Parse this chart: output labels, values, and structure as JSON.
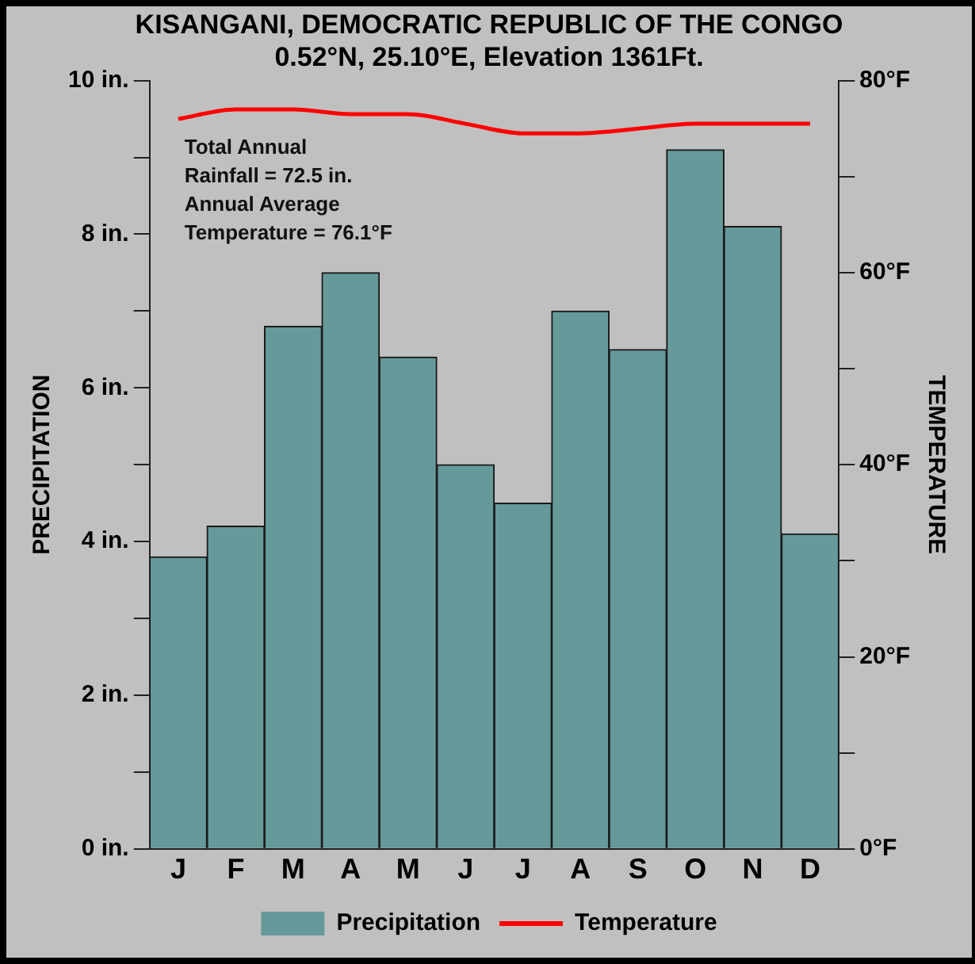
{
  "chart_data": {
    "type": "bar",
    "title": [
      "KISANGANI, DEMOCRATIC REPUBLIC OF THE CONGO",
      "0.52°N, 25.10°E, Elevation 1361Ft."
    ],
    "categories": [
      "J",
      "F",
      "M",
      "A",
      "M",
      "J",
      "J",
      "A",
      "S",
      "O",
      "N",
      "D"
    ],
    "series": [
      {
        "name": "Precipitation",
        "color": "#669999",
        "values": [
          3.8,
          4.2,
          6.8,
          7.5,
          6.4,
          5.0,
          4.5,
          7.0,
          6.5,
          9.1,
          8.1,
          4.1
        ]
      },
      {
        "name": "Temperature",
        "type": "line",
        "axis": "y2",
        "color": "#ff0000",
        "values": [
          76,
          77,
          77,
          76.5,
          76.5,
          75.5,
          74.5,
          74.5,
          75,
          75.5,
          75.5,
          75.5
        ]
      }
    ],
    "ylabel": "PRECIPITATION",
    "y2label": "TEMPERATURE",
    "ylim": [
      0,
      10
    ],
    "yticks": [
      {
        "value": 0,
        "label": "0 in."
      },
      {
        "value": 1,
        "label": null
      },
      {
        "value": 2,
        "label": "2 in."
      },
      {
        "value": 3,
        "label": null
      },
      {
        "value": 4,
        "label": "4 in."
      },
      {
        "value": 5,
        "label": null
      },
      {
        "value": 6,
        "label": "6 in."
      },
      {
        "value": 7,
        "label": null
      },
      {
        "value": 8,
        "label": "8 in."
      },
      {
        "value": 9,
        "label": null
      },
      {
        "value": 10,
        "label": "10 in."
      }
    ],
    "y2lim": [
      0,
      80
    ],
    "y2ticks": [
      {
        "value": 0,
        "label": "0°F"
      },
      {
        "value": 10,
        "label": null
      },
      {
        "value": 20,
        "label": "20°F"
      },
      {
        "value": 30,
        "label": null
      },
      {
        "value": 40,
        "label": "40°F"
      },
      {
        "value": 50,
        "label": null
      },
      {
        "value": 60,
        "label": "60°F"
      },
      {
        "value": 70,
        "label": null
      },
      {
        "value": 80,
        "label": "80°F"
      }
    ],
    "annotations": [
      "Total Annual\nRainfall = 72.5 in.\nAnnual Average\nTemperature = 76.1°F"
    ],
    "legend": "bottom",
    "grid": false,
    "marker": "none",
    "line_style": "solid"
  }
}
